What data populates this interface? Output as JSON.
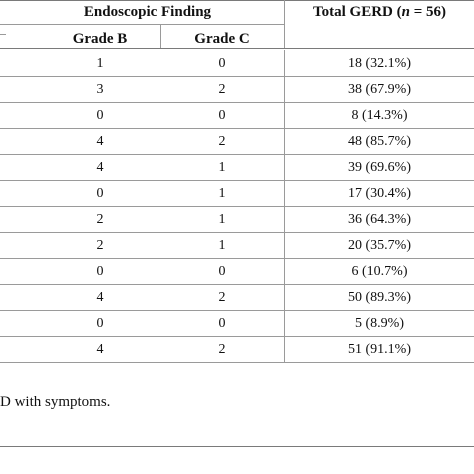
{
  "table": {
    "header": {
      "group_label": "Endoscopic Finding",
      "grade_b": "Grade B",
      "grade_c": "Grade C",
      "total_prefix": "Total GERD (",
      "total_n": "n",
      "total_suffix": " = 56)"
    },
    "rows": [
      {
        "grade_b": "1",
        "grade_c": "0",
        "total": "18 (32.1%)"
      },
      {
        "grade_b": "3",
        "grade_c": "2",
        "total": "38 (67.9%)"
      },
      {
        "grade_b": "0",
        "grade_c": "0",
        "total": "8 (14.3%)"
      },
      {
        "grade_b": "4",
        "grade_c": "2",
        "total": "48 (85.7%)"
      },
      {
        "grade_b": "4",
        "grade_c": "1",
        "total": "39 (69.6%)"
      },
      {
        "grade_b": "0",
        "grade_c": "1",
        "total": "17 (30.4%)"
      },
      {
        "grade_b": "2",
        "grade_c": "1",
        "total": "36 (64.3%)"
      },
      {
        "grade_b": "2",
        "grade_c": "1",
        "total": "20 (35.7%)"
      },
      {
        "grade_b": "0",
        "grade_c": "0",
        "total": "6 (10.7%)"
      },
      {
        "grade_b": "4",
        "grade_c": "2",
        "total": "50 (89.3%)"
      },
      {
        "grade_b": "0",
        "grade_c": "0",
        "total": "5 (8.9%)"
      },
      {
        "grade_b": "4",
        "grade_c": "2",
        "total": "51 (91.1%)"
      }
    ]
  },
  "footnote": "D with symptoms."
}
